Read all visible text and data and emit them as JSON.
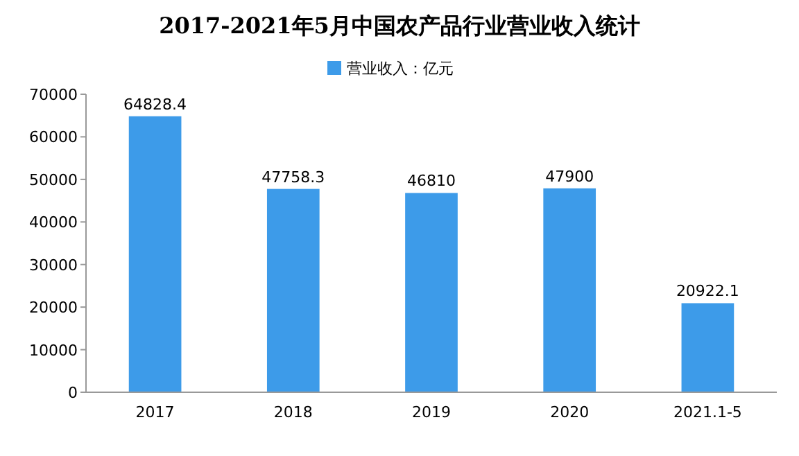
{
  "chart_data": {
    "type": "bar",
    "title": "2017-2021年5月中国农产品行业营业收入统计",
    "categories": [
      "2017",
      "2018",
      "2019",
      "2020",
      "2021.1-5"
    ],
    "series": [
      {
        "name": "营业收入：亿元",
        "color": "#3d9be9",
        "values": [
          64828.4,
          47758.3,
          46810,
          47900,
          20922.1
        ]
      }
    ],
    "value_labels": [
      "64828.4",
      "47758.3",
      "46810",
      "47900",
      "20922.1"
    ],
    "ylim": [
      0,
      70000
    ],
    "yticks": [
      0,
      10000,
      20000,
      30000,
      40000,
      50000,
      60000,
      70000
    ],
    "legend": "top",
    "grid": false
  }
}
